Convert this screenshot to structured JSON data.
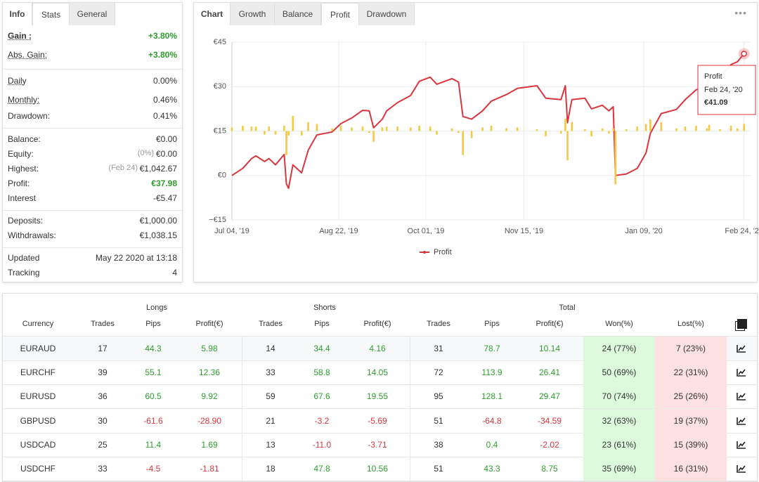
{
  "stats": {
    "tabs": [
      "Info",
      "Stats",
      "General"
    ],
    "groups": [
      [
        {
          "label": "Gain :",
          "value": "+3.80%",
          "color": "#2e9e2e",
          "underline": true,
          "bold": true
        },
        {
          "label": "Abs. Gain:",
          "value": "+3.80%",
          "color": "#2e9e2e",
          "underline": true
        }
      ],
      [
        {
          "label": "Daily",
          "value": "0.00%",
          "underline": true
        },
        {
          "label": "Monthly:",
          "value": "0.46%",
          "underline": true
        },
        {
          "label": "Drawdown:",
          "value": "0.41%"
        }
      ],
      [
        {
          "label": "Balance:",
          "value": "€0.00"
        },
        {
          "label": "Equity:",
          "note": "(0%)",
          "value": "€0.00"
        },
        {
          "label": "Highest:",
          "note": "(Feb 24)",
          "value": "€1,042.67"
        },
        {
          "label": "Profit:",
          "value": "€37.98",
          "color": "#2e9e2e"
        },
        {
          "label": "Interest",
          "value": "-€5.47"
        }
      ],
      [
        {
          "label": "Deposits:",
          "value": "€1,000.00"
        },
        {
          "label": "Withdrawals:",
          "value": "€1,038.15"
        }
      ],
      [
        {
          "label": "Updated",
          "value": "May 22 2020 at 13:18"
        },
        {
          "label": "Tracking",
          "value": "4"
        }
      ]
    ]
  },
  "chart_tabs": [
    "Chart",
    "Growth",
    "Balance",
    "Profit",
    "Drawdown"
  ],
  "chart_data": {
    "type": "line",
    "x": [
      "2019-07-04",
      "2019-07-09",
      "2019-07-13",
      "2019-07-15",
      "2019-07-19",
      "2019-07-21",
      "2019-07-24",
      "2019-07-28",
      "2019-07-29",
      "2019-07-30",
      "2019-08-01",
      "2019-08-05",
      "2019-08-08",
      "2019-08-12",
      "2019-08-19",
      "2019-08-23",
      "2019-08-28",
      "2019-09-02",
      "2019-09-05",
      "2019-09-07",
      "2019-09-11",
      "2019-09-13",
      "2019-09-18",
      "2019-09-24",
      "2019-09-28",
      "2019-10-03",
      "2019-10-06",
      "2019-10-13",
      "2019-10-16",
      "2019-10-18",
      "2019-10-22",
      "2019-10-27",
      "2019-10-31",
      "2019-11-07",
      "2019-11-12",
      "2019-11-21",
      "2019-11-25",
      "2019-12-02",
      "2019-12-04",
      "2019-12-05",
      "2019-12-07",
      "2019-12-13",
      "2019-12-16",
      "2019-12-21",
      "2019-12-24",
      "2019-12-26",
      "2019-12-27",
      "2020-01-01",
      "2020-01-06",
      "2020-01-10",
      "2020-01-12",
      "2020-01-17",
      "2020-01-24",
      "2020-01-28",
      "2020-02-02",
      "2020-02-07",
      "2020-02-08",
      "2020-02-13",
      "2020-02-18",
      "2020-02-21",
      "2020-02-24"
    ],
    "series": [
      {
        "name": "Profit",
        "color": "#d9363e",
        "values": [
          0,
          2.4,
          5.7,
          6.6,
          4.7,
          5.7,
          3.6,
          7.1,
          -2.8,
          -4.3,
          3.6,
          0.9,
          8.5,
          13.7,
          14.7,
          17.5,
          19.4,
          22,
          21.8,
          16.1,
          19,
          21.8,
          24.6,
          27,
          31.8,
          33.2,
          30.8,
          32.7,
          31.5,
          19.9,
          19,
          21.8,
          25.1,
          27.3,
          29.4,
          30.3,
          26.1,
          25.6,
          30.3,
          17.8,
          25.6,
          26.1,
          22.5,
          23.7,
          21.8,
          23.2,
          0,
          0.5,
          2.4,
          7.6,
          14.2,
          20.9,
          22.3,
          25.6,
          28.9,
          30.3,
          33.2,
          33.6,
          37.4,
          38.4,
          41.09
        ]
      },
      {
        "type": "bar",
        "axis": "y2",
        "color": "#f5c842",
        "values": [
          0.4,
          0.6,
          0.5,
          0.5,
          -0.4,
          0.5,
          -0.4,
          0.6,
          -2.7,
          -0.5,
          1.7,
          -0.5,
          1.0,
          0.8,
          0.3,
          0.6,
          0.4,
          0.5,
          -0.2,
          -1.2,
          0.4,
          0.5,
          0.5,
          0.4,
          0.6,
          0.5,
          -0.4,
          0.3,
          -0.2,
          -2.7,
          -0.8,
          0.4,
          0.6,
          0.3,
          0.4,
          0.2,
          -0.6,
          -0.3,
          1.4,
          -3.3,
          1.0,
          0.2,
          -0.6,
          0.3,
          -0.3,
          0.3,
          -6.0,
          0.2,
          0.5,
          0.8,
          1.3,
          1.0,
          0.3,
          0.5,
          0.6,
          0.3,
          0.7,
          0.2,
          0.6,
          0.3,
          0.8
        ]
      }
    ],
    "xlim": [
      "2019-07-04",
      "2020-02-27"
    ],
    "xticks": [
      {
        "value": "2019-07-04",
        "label": "Jul 04, '19"
      },
      {
        "value": "2019-08-22",
        "label": "Aug 22, '19"
      },
      {
        "value": "2019-10-01",
        "label": "Oct 01, '19"
      },
      {
        "value": "2019-11-15",
        "label": "Nov 15, '19"
      },
      {
        "value": "2020-01-09",
        "label": "Jan 09, '20"
      },
      {
        "value": "2020-02-24",
        "label": "Feb 24, '20"
      }
    ],
    "ylim": [
      -15,
      45
    ],
    "yticks": [
      {
        "value": -15,
        "label": "−€15"
      },
      {
        "value": 0,
        "label": "€0"
      },
      {
        "value": 15,
        "label": "€15"
      },
      {
        "value": 30,
        "label": "€30"
      },
      {
        "value": 45,
        "label": "€45"
      }
    ],
    "y2lim": [
      -10,
      10
    ],
    "grid": true,
    "legend": "bottom",
    "tooltip": {
      "title": "Profit",
      "date": "Feb 24, '20",
      "value_label": "€41.09"
    }
  },
  "table": {
    "groups": [
      "Longs",
      "Shorts",
      "Total"
    ],
    "columns": [
      "Currency",
      "Trades",
      "Pips",
      "Profit(€)",
      "Trades",
      "Pips",
      "Profit(€)",
      "Trades",
      "Pips",
      "Profit(€)",
      "Won(%)",
      "Lost(%)"
    ],
    "rows": [
      [
        "EURAUD",
        "17",
        "44.3",
        "5.98",
        "14",
        "34.4",
        "4.16",
        "31",
        "78.7",
        "10.14",
        "24 (77%)",
        "7 (23%)"
      ],
      [
        "EURCHF",
        "39",
        "55.1",
        "12.36",
        "33",
        "58.8",
        "14.05",
        "72",
        "113.9",
        "26.41",
        "50 (69%)",
        "22 (31%)"
      ],
      [
        "EURUSD",
        "36",
        "60.5",
        "9.92",
        "59",
        "67.6",
        "19.55",
        "95",
        "128.1",
        "29.47",
        "70 (74%)",
        "25 (26%)"
      ],
      [
        "GBPUSD",
        "30",
        "-61.6",
        "-28.90",
        "21",
        "-3.2",
        "-5.69",
        "51",
        "-64.8",
        "-34.59",
        "32 (63%)",
        "19 (37%)"
      ],
      [
        "USDCAD",
        "25",
        "11.4",
        "1.69",
        "13",
        "-11.0",
        "-3.71",
        "38",
        "0.4",
        "-2.02",
        "23 (61%)",
        "15 (39%)"
      ],
      [
        "USDCHF",
        "33",
        "-4.5",
        "-1.81",
        "18",
        "47.8",
        "10.56",
        "51",
        "43.3",
        "8.75",
        "35 (69%)",
        "16 (31%)"
      ]
    ]
  }
}
